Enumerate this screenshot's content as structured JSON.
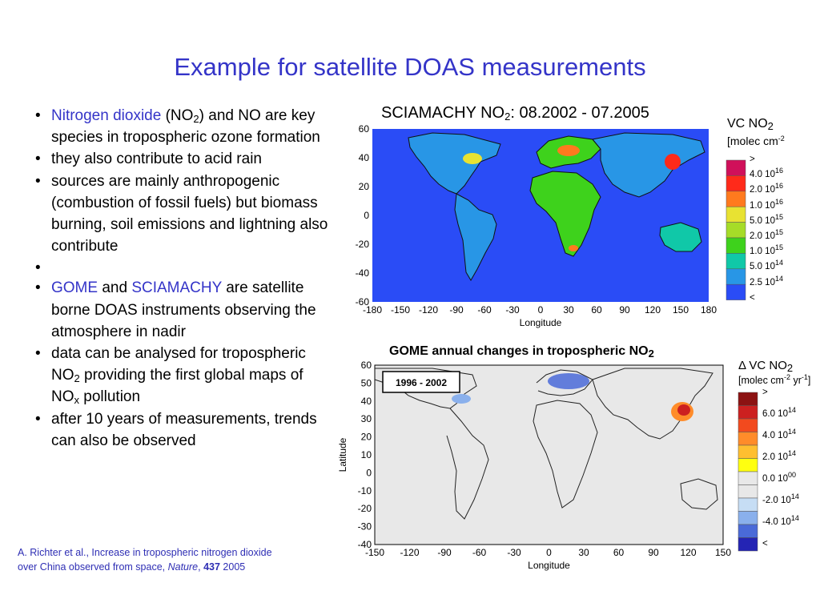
{
  "slide": {
    "title": "Example for satellite DOAS measurements"
  },
  "bullets": {
    "b1": {
      "p1": "Nitrogen dioxide",
      "p2": " (NO",
      "sub": "2",
      "p3": ") and NO are key species in tropospheric ozone formation"
    },
    "b2": "they also contribute to acid rain",
    "b3": "sources are mainly anthropogenic (combustion of fossil fuels) but biomass burning, soil emissions and lightning also contribute",
    "b4": {
      "p1": "GOME",
      "p2": " and ",
      "p3": "SCIAMACHY",
      "p4": " are satellite borne DOAS instruments observing the atmosphere in nadir"
    },
    "b5": {
      "p1": "data can be analysed for tropospheric NO",
      "sub": "2",
      "p2": " providing the first global maps of NO",
      "sub2": "x",
      "p3": " pollution"
    },
    "b6": "after 10 years of measurements, trends can also be observed"
  },
  "citation": {
    "line1": "A. Richter et al., Increase in tropospheric nitrogen dioxide",
    "line2a": "over China observed from space, ",
    "journal": "Nature",
    "volume": "437",
    "year": " 2005"
  },
  "map1": {
    "title_a": "SCIAMACHY NO",
    "title_sub": "2",
    "title_b": ": 08.2002 - 07.2005",
    "y_ticks": [
      "60",
      "40",
      "20",
      "0",
      "-20",
      "-40",
      "-60"
    ],
    "x_ticks": [
      "-180",
      "-150",
      "-120",
      "-90",
      "-60",
      "-30",
      "0",
      "30",
      "60",
      "90",
      "120",
      "150",
      "180"
    ],
    "xlabel": "Longitude",
    "legend": {
      "head1a": "VC NO",
      "head1sub": "2",
      "head2a": "[molec cm",
      "head2sup": "-2",
      "colors": [
        "#d0105a",
        "#ff2a1a",
        "#ff7a1e",
        "#e8e232",
        "#a6dc28",
        "#3ed21c",
        "#10c8a8",
        "#2896e6",
        "#2a4cf6"
      ],
      "labels": [
        ">",
        "4.0 10",
        "2.0 10",
        "1.0 10",
        "5.0 10",
        "2.0 10",
        "1.0 10",
        "5.0 10",
        "2.5 10",
        "<"
      ],
      "exps": [
        "",
        "16",
        "16",
        "16",
        "15",
        "15",
        "15",
        "14",
        "14",
        ""
      ]
    }
  },
  "map2": {
    "title_a": "GOME annual changes in tropospheric  NO",
    "title_sub": "2",
    "period": "1996 - 2002",
    "y_ticks": [
      "60",
      "50",
      "40",
      "30",
      "20",
      "10",
      "0",
      "-10",
      "-20",
      "-30",
      "-40"
    ],
    "x_ticks": [
      "-150",
      "-120",
      "-90",
      "-60",
      "-30",
      "0",
      "30",
      "60",
      "90",
      "120",
      "150"
    ],
    "xlabel": "Longitude",
    "ylabel": "Latitude",
    "legend": {
      "head1a": "Δ VC NO",
      "head1sub": "2",
      "head2a": "[molec cm",
      "head2sup": "-2",
      "head2b": " yr",
      "head2sup2": "-1",
      "head2c": "]",
      "colors": [
        "#8c1212",
        "#cc2020",
        "#f24a1e",
        "#ff8c2a",
        "#ffbf30",
        "#ffff10",
        "#e8e8e8",
        "#e8e8e8",
        "#c6ddf4",
        "#8ab0ec",
        "#4a6ad8",
        "#2424b4"
      ],
      "labels": [
        ">",
        "6.0 10",
        "4.0 10",
        "2.0 10",
        "0.0 10",
        "-2.0 10",
        "-4.0 10",
        "<"
      ],
      "exps": [
        "",
        "14",
        "14",
        "14",
        "00",
        "14",
        "14",
        ""
      ]
    }
  }
}
